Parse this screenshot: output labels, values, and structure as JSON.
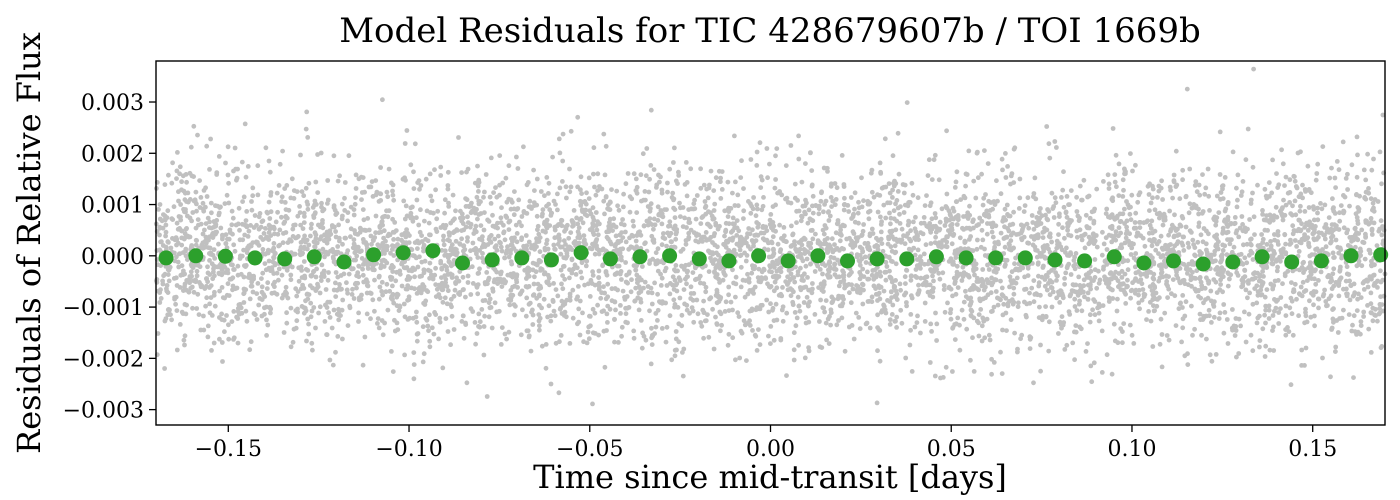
{
  "chart_data": {
    "type": "scatter",
    "title": "Model Residuals for TIC 428679607b / TOI 1669b",
    "xlabel": "Time since mid-transit [days]",
    "ylabel": "Residuals of Relative Flux",
    "xlim": [
      -0.17,
      0.17
    ],
    "ylim": [
      -0.0033,
      0.0038
    ],
    "xticks": [
      {
        "value": -0.15,
        "label": "−0.15"
      },
      {
        "value": -0.1,
        "label": "−0.10"
      },
      {
        "value": -0.05,
        "label": "−0.05"
      },
      {
        "value": 0.0,
        "label": "0.00"
      },
      {
        "value": 0.05,
        "label": "0.05"
      },
      {
        "value": 0.1,
        "label": "0.10"
      },
      {
        "value": 0.15,
        "label": "0.15"
      }
    ],
    "yticks": [
      {
        "value": 0.003,
        "label": "0.003"
      },
      {
        "value": 0.002,
        "label": "0.002"
      },
      {
        "value": 0.001,
        "label": "0.001"
      },
      {
        "value": 0.0,
        "label": "0.000"
      },
      {
        "value": -0.001,
        "label": "−0.001"
      },
      {
        "value": -0.002,
        "label": "−0.002"
      },
      {
        "value": -0.003,
        "label": "−0.003"
      }
    ],
    "grid": false,
    "colors": {
      "raw": "#c0c0c0",
      "binned": "#2ca02c"
    },
    "raw_residuals": {
      "point_count": 6000,
      "mean": 0.0,
      "std": 0.00085
    },
    "binned_residuals": {
      "x": [
        -0.1672,
        -0.159,
        -0.1508,
        -0.1426,
        -0.1344,
        -0.1262,
        -0.118,
        -0.1098,
        -0.1016,
        -0.0934,
        -0.0852,
        -0.077,
        -0.0688,
        -0.0606,
        -0.0524,
        -0.0443,
        -0.0361,
        -0.0279,
        -0.0197,
        -0.0115,
        -0.0033,
        0.0049,
        0.0131,
        0.0213,
        0.0295,
        0.0377,
        0.0459,
        0.0541,
        0.0623,
        0.0705,
        0.0787,
        0.0869,
        0.0951,
        0.1033,
        0.1115,
        0.1197,
        0.1279,
        0.136,
        0.1442,
        0.1524,
        0.1606,
        0.1688
      ],
      "y": [
        -4e-05,
        0.0,
        -1e-05,
        -4e-05,
        -6e-05,
        -2e-05,
        -0.00012,
        2e-05,
        6e-05,
        0.0001,
        -0.00014,
        -8e-05,
        -4e-05,
        -8e-05,
        6e-05,
        -6e-05,
        -2e-05,
        0.0,
        -6e-05,
        -0.0001,
        0.0,
        -0.0001,
        0.0,
        -0.0001,
        -6e-05,
        -6e-05,
        -2e-05,
        -4e-05,
        -4e-05,
        -4e-05,
        -8e-05,
        -0.0001,
        -2e-05,
        -0.00014,
        -0.0001,
        -0.00016,
        -0.00012,
        -2e-05,
        -0.00012,
        -0.0001,
        0.0,
        2e-05
      ]
    }
  }
}
